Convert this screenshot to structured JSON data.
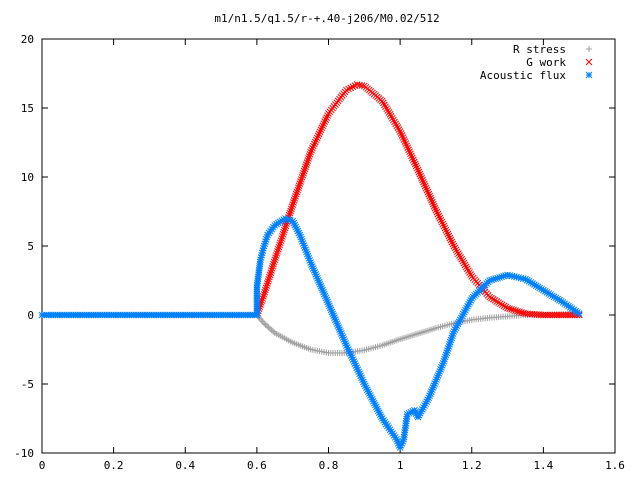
{
  "chart_data": {
    "type": "scatter",
    "title": "m1/n1.5/q1.5/r-+.40-j206/M0.02/512",
    "xlabel": "",
    "ylabel": "",
    "xlim": [
      0,
      1.6
    ],
    "ylim": [
      -10,
      20
    ],
    "x_ticks": [
      0,
      0.2,
      0.4,
      0.6,
      0.8,
      1,
      1.2,
      1.4,
      1.6
    ],
    "x_tick_labels": [
      "0",
      "0.2",
      "0.4",
      "0.6",
      "0.8",
      "1",
      "1.2",
      "1.4",
      "1.6"
    ],
    "y_ticks": [
      -10,
      -5,
      0,
      5,
      10,
      15,
      20
    ],
    "y_tick_labels": [
      "-10",
      "-5",
      "0",
      "5",
      "10",
      "15",
      "20"
    ],
    "grid": false,
    "legend_position": "top-right",
    "series": [
      {
        "name": "R stress",
        "color": "#a0a0a0",
        "marker": "plus",
        "points": [
          [
            0,
            0
          ],
          [
            0.1,
            0
          ],
          [
            0.2,
            0
          ],
          [
            0.3,
            0
          ],
          [
            0.4,
            0
          ],
          [
            0.5,
            0
          ],
          [
            0.6,
            0
          ],
          [
            0.62,
            -0.6
          ],
          [
            0.65,
            -1.3
          ],
          [
            0.7,
            -2.0
          ],
          [
            0.75,
            -2.5
          ],
          [
            0.8,
            -2.75
          ],
          [
            0.85,
            -2.75
          ],
          [
            0.9,
            -2.55
          ],
          [
            0.95,
            -2.2
          ],
          [
            1.0,
            -1.75
          ],
          [
            1.05,
            -1.35
          ],
          [
            1.1,
            -0.95
          ],
          [
            1.15,
            -0.6
          ],
          [
            1.2,
            -0.35
          ],
          [
            1.25,
            -0.2
          ],
          [
            1.3,
            -0.1
          ],
          [
            1.35,
            0
          ],
          [
            1.4,
            0
          ],
          [
            1.45,
            0.05
          ],
          [
            1.5,
            0.1
          ]
        ]
      },
      {
        "name": "G work",
        "color": "#ff0000",
        "marker": "cross",
        "points": [
          [
            0.6,
            0
          ],
          [
            0.62,
            1.5
          ],
          [
            0.65,
            4.0
          ],
          [
            0.7,
            8.0
          ],
          [
            0.75,
            11.8
          ],
          [
            0.8,
            14.6
          ],
          [
            0.85,
            16.3
          ],
          [
            0.88,
            16.7
          ],
          [
            0.9,
            16.6
          ],
          [
            0.95,
            15.5
          ],
          [
            1.0,
            13.3
          ],
          [
            1.05,
            10.5
          ],
          [
            1.1,
            7.6
          ],
          [
            1.15,
            5.0
          ],
          [
            1.2,
            2.8
          ],
          [
            1.25,
            1.3
          ],
          [
            1.3,
            0.5
          ],
          [
            1.35,
            0.1
          ],
          [
            1.4,
            0
          ],
          [
            1.45,
            0
          ],
          [
            1.5,
            0
          ]
        ]
      },
      {
        "name": "Acoustic flux",
        "color": "#0080ff",
        "marker": "star",
        "points": [
          [
            0,
            0
          ],
          [
            0.1,
            0
          ],
          [
            0.2,
            0
          ],
          [
            0.3,
            0
          ],
          [
            0.4,
            0
          ],
          [
            0.5,
            0
          ],
          [
            0.6,
            0
          ],
          [
            0.6,
            2.0
          ],
          [
            0.61,
            4.0
          ],
          [
            0.62,
            5.0
          ],
          [
            0.63,
            5.8
          ],
          [
            0.65,
            6.5
          ],
          [
            0.68,
            7.0
          ],
          [
            0.7,
            6.8
          ],
          [
            0.72,
            5.8
          ],
          [
            0.75,
            3.8
          ],
          [
            0.8,
            0.8
          ],
          [
            0.85,
            -2.2
          ],
          [
            0.9,
            -5.0
          ],
          [
            0.95,
            -7.5
          ],
          [
            0.99,
            -9.0
          ],
          [
            1.0,
            -9.6
          ],
          [
            1.01,
            -9.0
          ],
          [
            1.02,
            -7.2
          ],
          [
            1.04,
            -6.9
          ],
          [
            1.05,
            -7.4
          ],
          [
            1.08,
            -6.0
          ],
          [
            1.12,
            -3.5
          ],
          [
            1.15,
            -1.2
          ],
          [
            1.2,
            1.2
          ],
          [
            1.25,
            2.5
          ],
          [
            1.3,
            2.9
          ],
          [
            1.35,
            2.6
          ],
          [
            1.4,
            1.8
          ],
          [
            1.45,
            1.0
          ],
          [
            1.5,
            0.1
          ]
        ]
      }
    ]
  }
}
